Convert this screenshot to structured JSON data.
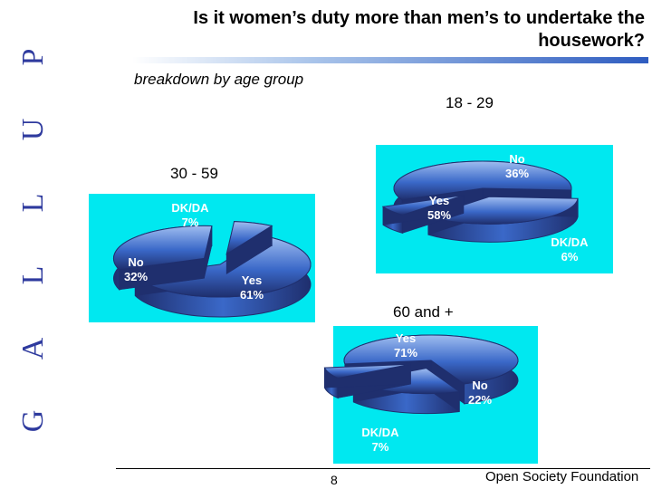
{
  "title": "Is it women’s duty more than men’s to undertake the housework?",
  "subtitle": "breakdown by age group",
  "logo_text": "GALLUP",
  "page_number": "8",
  "footer": "Open Society Foundation",
  "colors": {
    "panel": "#00e8f0",
    "pie_dark": "#1f2f6e",
    "pie_mid": "#3a68c8",
    "pie_light": "#9fbdf0",
    "logo": "#2e3a9e"
  },
  "chart_data": [
    {
      "type": "pie",
      "group_label": "18 - 29",
      "slices": [
        {
          "label": "Yes",
          "value": 58,
          "display": "58%"
        },
        {
          "label": "No",
          "value": 36,
          "display": "36%"
        },
        {
          "label": "DK/DA",
          "value": 6,
          "display": "6%"
        }
      ]
    },
    {
      "type": "pie",
      "group_label": "30 - 59",
      "slices": [
        {
          "label": "Yes",
          "value": 61,
          "display": "61%"
        },
        {
          "label": "No",
          "value": 32,
          "display": "32%"
        },
        {
          "label": "DK/DA",
          "value": 7,
          "display": "7%"
        }
      ]
    },
    {
      "type": "pie",
      "group_label": "60 and +",
      "slices": [
        {
          "label": "Yes",
          "value": 71,
          "display": "71%"
        },
        {
          "label": "No",
          "value": 22,
          "display": "22%"
        },
        {
          "label": "DK/DA",
          "value": 7,
          "display": "7%"
        }
      ]
    }
  ]
}
